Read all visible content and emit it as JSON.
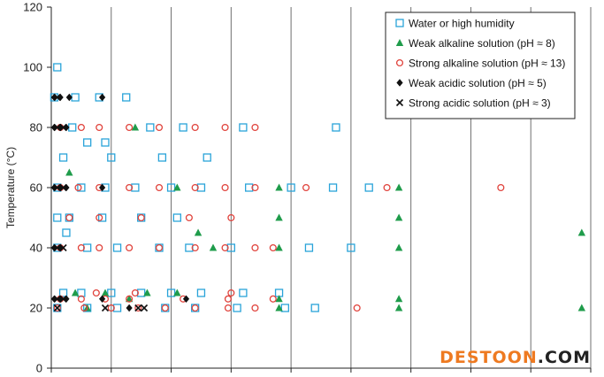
{
  "chart_data": {
    "type": "scatter",
    "ylabel": "Temperature (°C)",
    "ylim": [
      0,
      120
    ],
    "yticks": [
      "0",
      "20",
      "40",
      "60",
      "80",
      "100",
      "120"
    ],
    "xlim": [
      0,
      9
    ],
    "grid": "vertical",
    "legend_position": "top-right",
    "series": [
      {
        "name": "Water or high humidity",
        "marker": "open-square",
        "color": "#29a3d9",
        "points": [
          [
            0.1,
            100
          ],
          [
            0.05,
            90
          ],
          [
            0.4,
            90
          ],
          [
            0.8,
            90
          ],
          [
            1.25,
            90
          ],
          [
            0.6,
            75
          ],
          [
            0.9,
            75
          ],
          [
            0.2,
            70
          ],
          [
            1.0,
            70
          ],
          [
            1.85,
            70
          ],
          [
            2.6,
            70
          ],
          [
            0.1,
            60
          ],
          [
            0.5,
            60
          ],
          [
            0.9,
            60
          ],
          [
            1.4,
            60
          ],
          [
            2.0,
            60
          ],
          [
            2.5,
            60
          ],
          [
            3.3,
            60
          ],
          [
            4.0,
            60
          ],
          [
            4.7,
            60
          ],
          [
            5.3,
            60
          ],
          [
            0.1,
            50
          ],
          [
            0.3,
            50
          ],
          [
            0.85,
            50
          ],
          [
            1.5,
            50
          ],
          [
            2.1,
            50
          ],
          [
            0.25,
            45
          ],
          [
            0.1,
            40
          ],
          [
            0.6,
            40
          ],
          [
            1.1,
            40
          ],
          [
            1.8,
            40
          ],
          [
            2.3,
            40
          ],
          [
            3.0,
            40
          ],
          [
            4.3,
            40
          ],
          [
            5.0,
            40
          ],
          [
            0.2,
            25
          ],
          [
            0.5,
            25
          ],
          [
            1.0,
            25
          ],
          [
            1.5,
            25
          ],
          [
            2.0,
            25
          ],
          [
            2.5,
            25
          ],
          [
            3.2,
            25
          ],
          [
            3.8,
            25
          ],
          [
            0.1,
            20
          ],
          [
            0.6,
            20
          ],
          [
            1.1,
            20
          ],
          [
            1.9,
            20
          ],
          [
            2.4,
            20
          ],
          [
            3.1,
            20
          ],
          [
            3.9,
            20
          ],
          [
            4.4,
            20
          ],
          [
            1.65,
            80
          ],
          [
            2.2,
            80
          ],
          [
            3.2,
            80
          ],
          [
            4.75,
            80
          ],
          [
            0.35,
            80
          ]
        ]
      },
      {
        "name": "Weak alkaline solution (pH ≈ 8)",
        "marker": "filled-triangle",
        "color": "#1f9c4b",
        "points": [
          [
            0.3,
            65
          ],
          [
            1.4,
            80
          ],
          [
            0.4,
            25
          ],
          [
            0.9,
            25
          ],
          [
            1.6,
            25
          ],
          [
            2.1,
            25
          ],
          [
            1.3,
            23
          ],
          [
            0.6,
            20
          ],
          [
            2.45,
            45
          ],
          [
            3.8,
            60
          ],
          [
            5.8,
            60
          ],
          [
            3.8,
            50
          ],
          [
            5.8,
            50
          ],
          [
            3.8,
            40
          ],
          [
            5.8,
            40
          ],
          [
            3.8,
            23
          ],
          [
            5.8,
            23
          ],
          [
            3.8,
            20
          ],
          [
            5.8,
            20
          ],
          [
            8.85,
            45
          ],
          [
            8.85,
            20
          ],
          [
            2.1,
            60
          ],
          [
            2.7,
            40
          ]
        ]
      },
      {
        "name": "Strong alkaline solution (pH ≈ 13)",
        "marker": "open-circle",
        "color": "#e0413a",
        "points": [
          [
            0.15,
            80
          ],
          [
            0.5,
            80
          ],
          [
            0.8,
            80
          ],
          [
            1.3,
            80
          ],
          [
            1.8,
            80
          ],
          [
            2.4,
            80
          ],
          [
            2.9,
            80
          ],
          [
            3.4,
            80
          ],
          [
            0.15,
            60
          ],
          [
            0.45,
            60
          ],
          [
            0.8,
            60
          ],
          [
            1.3,
            60
          ],
          [
            1.8,
            60
          ],
          [
            2.4,
            60
          ],
          [
            2.9,
            60
          ],
          [
            3.4,
            60
          ],
          [
            4.25,
            60
          ],
          [
            5.6,
            60
          ],
          [
            7.5,
            60
          ],
          [
            0.3,
            50
          ],
          [
            0.8,
            50
          ],
          [
            1.5,
            50
          ],
          [
            2.3,
            50
          ],
          [
            3.0,
            50
          ],
          [
            0.15,
            40
          ],
          [
            0.5,
            40
          ],
          [
            0.8,
            40
          ],
          [
            1.3,
            40
          ],
          [
            1.8,
            40
          ],
          [
            2.4,
            40
          ],
          [
            2.9,
            40
          ],
          [
            3.4,
            40
          ],
          [
            3.7,
            40
          ],
          [
            0.15,
            23
          ],
          [
            0.5,
            23
          ],
          [
            0.9,
            23
          ],
          [
            1.3,
            23
          ],
          [
            2.2,
            23
          ],
          [
            2.95,
            23
          ],
          [
            3.7,
            23
          ],
          [
            0.1,
            20
          ],
          [
            0.55,
            20
          ],
          [
            1.0,
            20
          ],
          [
            1.45,
            20
          ],
          [
            1.9,
            20
          ],
          [
            2.4,
            20
          ],
          [
            2.95,
            20
          ],
          [
            3.4,
            20
          ],
          [
            5.1,
            20
          ],
          [
            1.4,
            25
          ],
          [
            0.75,
            25
          ],
          [
            3.0,
            25
          ]
        ]
      },
      {
        "name": "Weak acidic solution (pH ≈ 5)",
        "marker": "filled-diamond",
        "color": "#111111",
        "points": [
          [
            0.05,
            90
          ],
          [
            0.15,
            90
          ],
          [
            0.3,
            90
          ],
          [
            0.85,
            90
          ],
          [
            0.05,
            80
          ],
          [
            0.15,
            80
          ],
          [
            0.25,
            80
          ],
          [
            0.05,
            60
          ],
          [
            0.15,
            60
          ],
          [
            0.25,
            60
          ],
          [
            0.85,
            60
          ],
          [
            0.05,
            40
          ],
          [
            0.15,
            40
          ],
          [
            0.05,
            23
          ],
          [
            0.15,
            23
          ],
          [
            0.25,
            23
          ],
          [
            0.85,
            23
          ],
          [
            2.25,
            23
          ],
          [
            1.3,
            20
          ]
        ]
      },
      {
        "name": "Strong acidic solution (pH ≈ 3)",
        "marker": "cross",
        "color": "#111111",
        "points": [
          [
            0.1,
            90
          ],
          [
            0.1,
            80
          ],
          [
            0.2,
            80
          ],
          [
            0.1,
            60
          ],
          [
            0.2,
            60
          ],
          [
            0.1,
            40
          ],
          [
            0.2,
            40
          ],
          [
            0.1,
            23
          ],
          [
            0.2,
            23
          ],
          [
            0.9,
            20
          ],
          [
            1.45,
            20
          ],
          [
            0.1,
            20
          ],
          [
            1.55,
            20
          ]
        ]
      }
    ]
  },
  "watermark": {
    "text_main": "DESTOON",
    "text_suffix": ".COM",
    "color_main": "#ee7a21",
    "color_suffix": "#222222"
  }
}
